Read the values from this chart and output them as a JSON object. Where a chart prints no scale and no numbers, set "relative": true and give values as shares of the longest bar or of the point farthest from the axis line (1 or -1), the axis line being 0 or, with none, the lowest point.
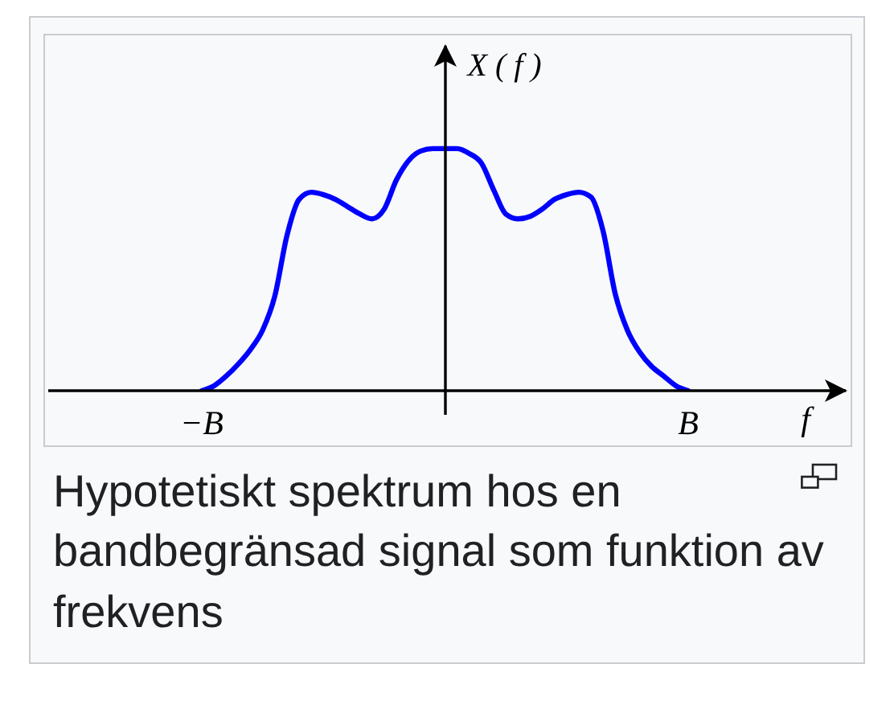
{
  "chart_data": {
    "type": "line",
    "relative": true,
    "xlabel": "f",
    "ylabel": "X ( f )",
    "categories": [
      "−B",
      null,
      null,
      null,
      null,
      null,
      null,
      null,
      null,
      null,
      null,
      null,
      null,
      null,
      null,
      null,
      null,
      null,
      null,
      null,
      null,
      null,
      null,
      null,
      null,
      null,
      null,
      null,
      null,
      null,
      null,
      null,
      null,
      null,
      null,
      null,
      null,
      null,
      null,
      null,
      "B"
    ],
    "values": [
      0,
      0.02,
      0.06,
      0.11,
      0.17,
      0.25,
      0.39,
      0.64,
      0.79,
      0.82,
      0.81,
      0.79,
      0.76,
      0.73,
      0.71,
      0.75,
      0.87,
      0.95,
      0.99,
      1,
      1,
      1,
      0.98,
      0.94,
      0.83,
      0.73,
      0.71,
      0.72,
      0.75,
      0.79,
      0.81,
      0.82,
      0.8,
      0.66,
      0.4,
      0.25,
      0.16,
      0.1,
      0.06,
      0.02,
      0
    ],
    "color": "#0000ff",
    "annotations": [
      "Hypotetiskt spektrum hos en bandbegränsad signal som funktion av frekvens"
    ]
  }
}
